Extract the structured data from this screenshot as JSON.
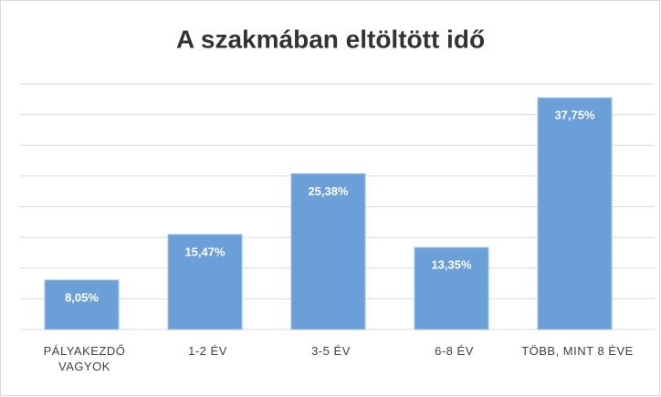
{
  "chart_data": {
    "type": "bar",
    "title": "A szakmában eltöltött idő",
    "categories": [
      "PÁLYAKEZDŐ VAGYOK",
      "1-2 ÉV",
      "3-5 ÉV",
      "6-8 ÉV",
      "TÖBB, MINT 8 ÉVE"
    ],
    "values": [
      8.05,
      15.47,
      25.38,
      13.35,
      37.75
    ],
    "value_labels": [
      "8,05%",
      "15,47%",
      "25,38%",
      "13,35%",
      "37,75%"
    ],
    "color": "#6a9fd8",
    "ylim": [
      0,
      40
    ],
    "yticks": [
      0,
      5,
      10,
      15,
      20,
      25,
      30,
      35,
      40
    ],
    "grid": true,
    "ytick_labels": false
  }
}
